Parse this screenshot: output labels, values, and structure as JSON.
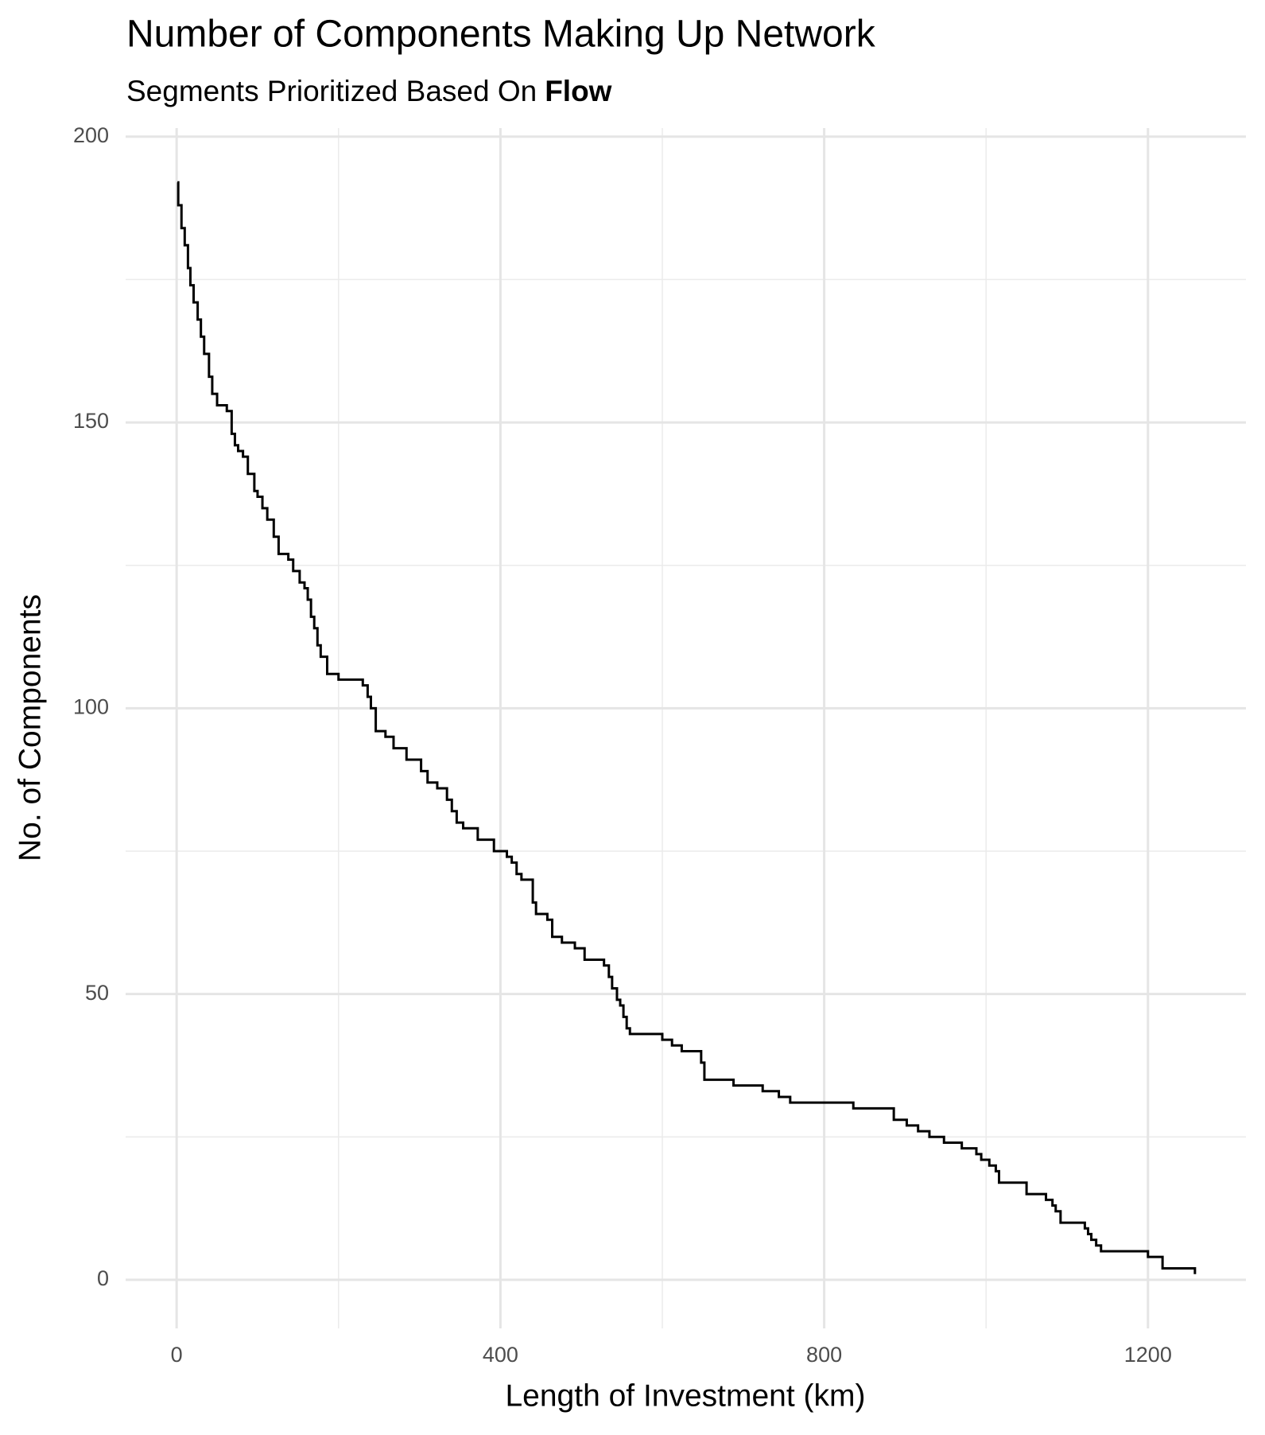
{
  "chart_data": {
    "type": "step",
    "title": "Number of Components Making Up Network",
    "subtitle": [
      "Segments Prioritized Based On",
      "Flow"
    ],
    "x_label": "Length of Investment (km)",
    "y_label": "No. of Components",
    "color": "#000000",
    "grid": true,
    "xlim": [
      -63,
      1321
    ],
    "ylim": [
      -8.5,
      201.5
    ],
    "xticks": [
      0,
      400,
      800,
      1200
    ],
    "yticks": [
      0,
      50,
      100,
      150,
      200
    ],
    "x_minor_ticks": [
      200,
      600,
      1000
    ],
    "y_minor_ticks": [
      25,
      75,
      125,
      175
    ],
    "x": [
      1,
      2,
      6,
      10,
      14,
      17,
      21,
      26,
      30,
      34,
      40,
      44,
      50,
      62,
      68,
      72,
      76,
      82,
      88,
      96,
      100,
      106,
      112,
      120,
      126,
      138,
      144,
      152,
      158,
      162,
      166,
      170,
      174,
      178,
      186,
      200,
      230,
      236,
      240,
      246,
      258,
      268,
      284,
      302,
      310,
      322,
      334,
      340,
      346,
      354,
      372,
      392,
      408,
      414,
      420,
      426,
      440,
      444,
      458,
      464,
      476,
      492,
      504,
      528,
      534,
      538,
      544,
      548,
      552,
      556,
      560,
      600,
      612,
      624,
      648,
      652,
      688,
      724,
      744,
      758,
      836,
      886,
      902,
      916,
      930,
      948,
      970,
      988,
      994,
      1004,
      1012,
      1016,
      1050,
      1074,
      1082,
      1086,
      1092,
      1122,
      1126,
      1130,
      1136,
      1142,
      1200,
      1218,
      1258
    ],
    "values": [
      192,
      188,
      184,
      181,
      177,
      174,
      171,
      168,
      165,
      162,
      158,
      155,
      153,
      152,
      148,
      146,
      145,
      144,
      141,
      138,
      137,
      135,
      133,
      130,
      127,
      126,
      124,
      122,
      121,
      119,
      116,
      114,
      111,
      109,
      106,
      105,
      104,
      102,
      100,
      96,
      95,
      93,
      91,
      89,
      87,
      86,
      84,
      82,
      80,
      79,
      77,
      75,
      74,
      73,
      71,
      70,
      66,
      64,
      63,
      60,
      59,
      58,
      56,
      55,
      53,
      51,
      49,
      48,
      46,
      44,
      43,
      42,
      41,
      40,
      38,
      35,
      34,
      33,
      32,
      31,
      30,
      28,
      27,
      26,
      25,
      24,
      23,
      22,
      21,
      20,
      19,
      17,
      15,
      14,
      13,
      12,
      10,
      9,
      8,
      7,
      6,
      5,
      4,
      2,
      1
    ]
  }
}
